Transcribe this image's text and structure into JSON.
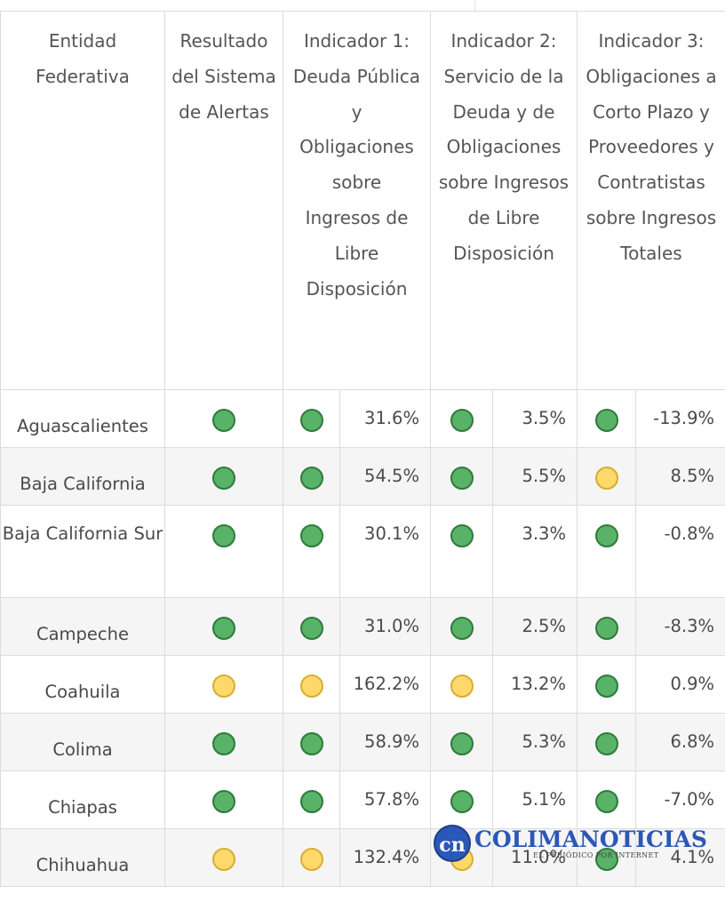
{
  "table": {
    "headers": {
      "entity": "Entidad Federativa",
      "result": "Resultado del Sistema de Alertas",
      "ind1": "Indicador 1: Deuda Pública y Obligaciones sobre Ingresos de Libre Disposición",
      "ind2": "Indicador 2: Servicio de la Deuda y de Obligaciones sobre Ingresos de Libre Disposición",
      "ind3": "Indicador 3: Obligaciones a Corto Plazo y Proveedores y Contratistas sobre Ingresos Totales"
    },
    "rows": [
      {
        "entity": "Aguascalientes",
        "result": "green",
        "ind1_status": "green",
        "ind1_value": "31.6%",
        "ind2_status": "green",
        "ind2_value": "3.5%",
        "ind3_status": "green",
        "ind3_value": "-13.9%"
      },
      {
        "entity": "Baja California",
        "result": "green",
        "ind1_status": "green",
        "ind1_value": "54.5%",
        "ind2_status": "green",
        "ind2_value": "5.5%",
        "ind3_status": "yellow",
        "ind3_value": "8.5%"
      },
      {
        "entity": "Baja California Sur",
        "result": "green",
        "ind1_status": "green",
        "ind1_value": "30.1%",
        "ind2_status": "green",
        "ind2_value": "3.3%",
        "ind3_status": "green",
        "ind3_value": "-0.8%"
      },
      {
        "entity": "Campeche",
        "result": "green",
        "ind1_status": "green",
        "ind1_value": "31.0%",
        "ind2_status": "green",
        "ind2_value": "2.5%",
        "ind3_status": "green",
        "ind3_value": "-8.3%"
      },
      {
        "entity": "Coahuila",
        "result": "yellow",
        "ind1_status": "yellow",
        "ind1_value": "162.2%",
        "ind2_status": "yellow",
        "ind2_value": "13.2%",
        "ind3_status": "green",
        "ind3_value": "0.9%"
      },
      {
        "entity": "Colima",
        "result": "green",
        "ind1_status": "green",
        "ind1_value": "58.9%",
        "ind2_status": "green",
        "ind2_value": "5.3%",
        "ind3_status": "green",
        "ind3_value": "6.8%"
      },
      {
        "entity": "Chiapas",
        "result": "green",
        "ind1_status": "green",
        "ind1_value": "57.8%",
        "ind2_status": "green",
        "ind2_value": "5.1%",
        "ind3_status": "green",
        "ind3_value": "-7.0%"
      },
      {
        "entity": "Chihuahua",
        "result": "yellow",
        "ind1_status": "yellow",
        "ind1_value": "132.4%",
        "ind2_status": "yellow",
        "ind2_value": "11.0%",
        "ind3_status": "green",
        "ind3_value": "4.1%"
      }
    ]
  },
  "watermark": {
    "mark": "cn",
    "name": "COLIMANOTICIAS",
    "tagline": "EL PERIÓDICO POR INTERNET"
  },
  "colors": {
    "green": "#58b368",
    "yellow": "#fdd86b",
    "brand": "#2b57b8"
  }
}
